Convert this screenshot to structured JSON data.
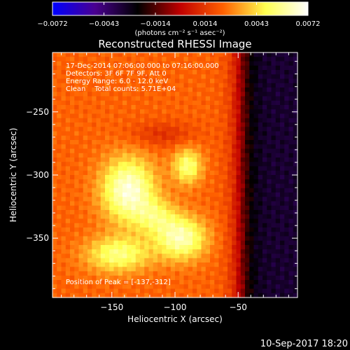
{
  "chart_data": {
    "type": "heatmap",
    "title": "Reconstructed RHESSI Image",
    "xlabel": "Heliocentric X (arcsec)",
    "ylabel": "Heliocentric Y (arcsec)",
    "xlim": [
      -197,
      -3
    ],
    "ylim": [
      -397,
      -203
    ],
    "x_ticks": [
      -150,
      -100,
      -50
    ],
    "x_tick_labels": [
      "−150",
      "−100",
      "−50"
    ],
    "y_ticks": [
      -250,
      -300,
      -350
    ],
    "y_tick_labels": [
      "−250",
      "−300",
      "−350"
    ],
    "colorbar": {
      "range": [
        -0.0072,
        0.0072
      ],
      "ticks": [
        -0.0072,
        -0.0043,
        -0.0014,
        0.0014,
        0.0043,
        0.0072
      ],
      "tick_labels": [
        "−0.0072",
        "−0.0043",
        "−0.0014",
        "0.0014",
        "0.0043",
        "0.0072"
      ],
      "unit_label": "(photons cm⁻² s⁻¹ asec⁻²)",
      "colors": [
        "#0000ff",
        "#4a0090",
        "#000000",
        "#c00000",
        "#ff6000",
        "#ffff50",
        "#ffffff"
      ]
    },
    "annotations": [
      "17-Dec-2014 07:06:00.000 to 07:16:00.000",
      "Detectors: 3F 6F 7F 9F, Att 0",
      "Energy Range: 6.0 - 12.0 keV",
      "Clean    Total counts: 5.71E+04"
    ],
    "peak_label": "Position of Peak = [-137,-312]",
    "peak": [
      -137,
      -312
    ],
    "sources": [
      {
        "x": -137,
        "y": -312,
        "rx": 15,
        "ry": 18,
        "value": 0.0072
      },
      {
        "x": -145,
        "y": -363,
        "rx": 18,
        "ry": 10,
        "value": 0.0058
      },
      {
        "x": -95,
        "y": -350,
        "rx": 14,
        "ry": 12,
        "value": 0.0066
      },
      {
        "x": -90,
        "y": -293,
        "rx": 8,
        "ry": 10,
        "value": 0.0058
      },
      {
        "x": -115,
        "y": -333,
        "rx": 12,
        "ry": 10,
        "value": 0.0046
      }
    ],
    "timestamp": "10-Sep-2017 18:20"
  }
}
